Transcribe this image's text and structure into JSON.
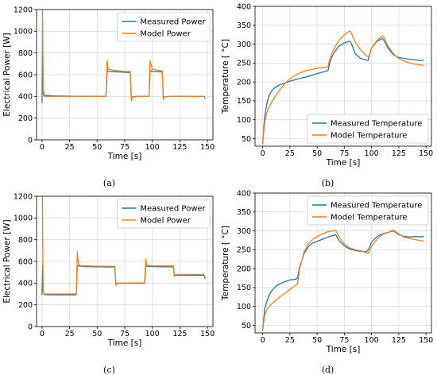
{
  "colors": {
    "measured": "#1f77b4",
    "model": "#ff7f0e"
  },
  "captions": [
    "(a)",
    "(b)",
    "(c)",
    "(d)"
  ],
  "chart_data": [
    {
      "id": "a",
      "type": "line",
      "xlabel": "Time [s]",
      "ylabel": "Electrical Power [W]",
      "xlim": [
        -5,
        155
      ],
      "ylim": [
        0,
        1200
      ],
      "xticks": [
        0,
        25,
        50,
        75,
        100,
        125,
        150
      ],
      "yticks": [
        0,
        200,
        400,
        600,
        800,
        1000,
        1200
      ],
      "grid": true,
      "legend": "top-right",
      "series": [
        {
          "name": "Measured Power",
          "color": "#1f77b4",
          "x": [
            0,
            0.5,
            1,
            2,
            5,
            10,
            20,
            30,
            40,
            50,
            58,
            59,
            60,
            65,
            70,
            75,
            80,
            81,
            82,
            85,
            90,
            95,
            97,
            98,
            100,
            105,
            109,
            110,
            111,
            115,
            120,
            130,
            140,
            147,
            148
          ],
          "y": [
            340,
            1100,
            470,
            410,
            408,
            405,
            403,
            402,
            401,
            400,
            400,
            640,
            630,
            628,
            625,
            622,
            620,
            390,
            395,
            398,
            400,
            400,
            400,
            640,
            630,
            628,
            625,
            390,
            395,
            398,
            400,
            400,
            398,
            400,
            380
          ]
        },
        {
          "name": "Model Power",
          "color": "#ff7f0e",
          "x": [
            0,
            0.3,
            1,
            2,
            5,
            10,
            20,
            30,
            40,
            50,
            58,
            59,
            60,
            65,
            70,
            75,
            80,
            81,
            82,
            85,
            90,
            95,
            97,
            98,
            100,
            105,
            109,
            110,
            111,
            115,
            120,
            130,
            140,
            147
          ],
          "y": [
            1200,
            1200,
            420,
            400,
            400,
            400,
            400,
            400,
            400,
            400,
            400,
            730,
            650,
            640,
            635,
            630,
            628,
            360,
            395,
            400,
            400,
            400,
            400,
            730,
            650,
            640,
            635,
            370,
            395,
            400,
            400,
            400,
            400,
            400
          ]
        }
      ]
    },
    {
      "id": "b",
      "type": "line",
      "xlabel": "Time [s]",
      "ylabel": "Temperature [$^\\circ$C]",
      "xlim": [
        -7,
        155
      ],
      "ylim": [
        30,
        400
      ],
      "xticks": [
        0,
        25,
        50,
        75,
        100,
        125,
        150
      ],
      "yticks": [
        50,
        100,
        150,
        200,
        250,
        300,
        350,
        400
      ],
      "grid": true,
      "legend": "bottom-right",
      "series": [
        {
          "name": "Measured Temperature",
          "color": "#1f77b4",
          "x": [
            0,
            1,
            2,
            4,
            6,
            8,
            10,
            13,
            16,
            20,
            25,
            30,
            35,
            40,
            45,
            50,
            55,
            58,
            60,
            62,
            65,
            70,
            75,
            80,
            81,
            85,
            90,
            95,
            97,
            98,
            100,
            105,
            110,
            111,
            115,
            120,
            125,
            130,
            135,
            140,
            145,
            148
          ],
          "y": [
            35,
            80,
            110,
            145,
            165,
            175,
            182,
            188,
            193,
            197,
            202,
            206,
            210,
            213,
            218,
            222,
            226,
            228,
            230,
            255,
            275,
            295,
            303,
            308,
            305,
            275,
            262,
            258,
            257,
            270,
            290,
            308,
            315,
            312,
            290,
            272,
            265,
            262,
            260,
            259,
            256,
            258
          ]
        },
        {
          "name": "Model Temperature",
          "color": "#ff7f0e",
          "x": [
            0,
            1,
            2,
            4,
            6,
            8,
            10,
            13,
            16,
            20,
            25,
            30,
            35,
            40,
            45,
            50,
            55,
            58,
            60,
            62,
            65,
            70,
            75,
            80,
            81,
            85,
            90,
            95,
            97,
            98,
            100,
            105,
            110,
            111,
            115,
            120,
            125,
            130,
            135,
            140,
            145,
            148
          ],
          "y": [
            35,
            70,
            95,
            120,
            135,
            145,
            155,
            168,
            180,
            195,
            208,
            218,
            225,
            230,
            233,
            236,
            238,
            239,
            240,
            265,
            285,
            310,
            325,
            335,
            332,
            305,
            285,
            270,
            265,
            272,
            290,
            310,
            322,
            320,
            295,
            275,
            262,
            255,
            250,
            247,
            245,
            244
          ]
        }
      ]
    },
    {
      "id": "c",
      "type": "line",
      "xlabel": "Time [s]",
      "ylabel": "Electrical Power [W]",
      "xlim": [
        -5,
        155
      ],
      "ylim": [
        0,
        1200
      ],
      "xticks": [
        0,
        25,
        50,
        75,
        100,
        125,
        150
      ],
      "yticks": [
        0,
        200,
        400,
        600,
        800,
        1000,
        1200
      ],
      "grid": true,
      "legend": "top-right",
      "series": [
        {
          "name": "Measured Power",
          "color": "#1f77b4",
          "x": [
            0,
            0.5,
            1,
            2,
            5,
            10,
            20,
            30,
            31,
            32,
            35,
            40,
            50,
            60,
            66,
            67,
            68,
            70,
            80,
            90,
            93,
            94,
            95,
            100,
            110,
            119,
            120,
            121,
            125,
            130,
            140,
            147,
            148
          ],
          "y": [
            290,
            560,
            330,
            295,
            293,
            292,
            292,
            292,
            295,
            560,
            555,
            552,
            550,
            548,
            548,
            390,
            395,
            398,
            398,
            398,
            398,
            560,
            555,
            552,
            550,
            550,
            470,
            475,
            472,
            472,
            472,
            472,
            440
          ]
        },
        {
          "name": "Model Power",
          "color": "#ff7f0e",
          "x": [
            0,
            0.3,
            1,
            2,
            5,
            10,
            20,
            30,
            31,
            32,
            33,
            35,
            40,
            50,
            60,
            66,
            67,
            68,
            70,
            80,
            90,
            93,
            94,
            95,
            100,
            110,
            119,
            120,
            121,
            125,
            130,
            140,
            147
          ],
          "y": [
            1200,
            1200,
            320,
            300,
            300,
            300,
            300,
            300,
            300,
            690,
            570,
            560,
            558,
            556,
            555,
            555,
            380,
            400,
            402,
            402,
            402,
            402,
            625,
            565,
            560,
            558,
            558,
            460,
            480,
            480,
            480,
            480,
            480
          ]
        }
      ]
    },
    {
      "id": "d",
      "type": "line",
      "xlabel": "Time [s]",
      "ylabel": "Temperature [$^\\circ$C]",
      "xlim": [
        -7,
        155
      ],
      "ylim": [
        30,
        400
      ],
      "xticks": [
        0,
        25,
        50,
        75,
        100,
        125,
        150
      ],
      "yticks": [
        50,
        100,
        150,
        200,
        250,
        300,
        350,
        400
      ],
      "grid": true,
      "legend": "top-right",
      "series": [
        {
          "name": "Measured Temperature",
          "color": "#1f77b4",
          "x": [
            0,
            1,
            2,
            4,
            6,
            8,
            10,
            13,
            16,
            20,
            25,
            30,
            32,
            34,
            38,
            42,
            46,
            50,
            55,
            60,
            65,
            67,
            70,
            75,
            80,
            85,
            90,
            95,
            97,
            100,
            105,
            110,
            115,
            120,
            125,
            130,
            135,
            140,
            145,
            148
          ],
          "y": [
            35,
            70,
            95,
            115,
            130,
            140,
            147,
            155,
            160,
            165,
            170,
            172,
            175,
            205,
            240,
            258,
            268,
            272,
            278,
            284,
            288,
            290,
            275,
            260,
            252,
            248,
            246,
            245,
            250,
            270,
            285,
            292,
            296,
            300,
            290,
            285,
            284,
            285,
            284,
            285
          ]
        },
        {
          "name": "Model Temperature",
          "color": "#ff7f0e",
          "x": [
            0,
            1,
            2,
            4,
            6,
            8,
            10,
            13,
            16,
            20,
            25,
            30,
            32,
            34,
            38,
            42,
            46,
            50,
            55,
            60,
            65,
            67,
            70,
            75,
            80,
            85,
            90,
            95,
            97,
            100,
            105,
            110,
            115,
            120,
            125,
            130,
            135,
            140,
            145,
            148
          ],
          "y": [
            35,
            60,
            78,
            92,
            100,
            106,
            111,
            118,
            126,
            134,
            145,
            155,
            160,
            200,
            245,
            265,
            278,
            285,
            292,
            298,
            300,
            301,
            285,
            265,
            255,
            250,
            247,
            243,
            240,
            260,
            278,
            290,
            296,
            302,
            292,
            283,
            280,
            277,
            274,
            273
          ]
        }
      ]
    }
  ]
}
